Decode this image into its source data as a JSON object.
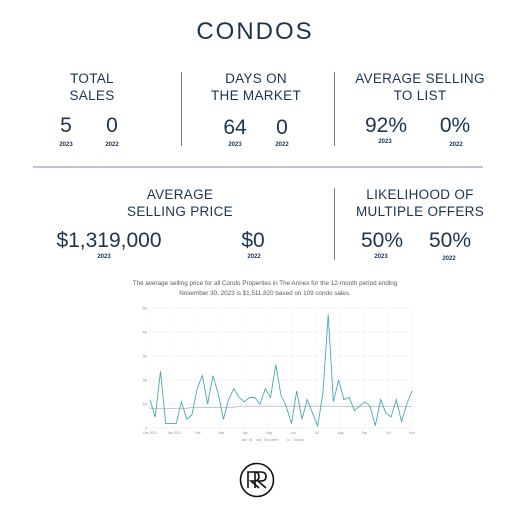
{
  "title": "CONDOS",
  "stats": {
    "total_sales": {
      "label_line1": "TOTAL",
      "label_line2": "SALES",
      "v2023": "5",
      "v2022": "0",
      "y1": "2023",
      "y2": "2022"
    },
    "days_on_market": {
      "label_line1": "DAYS ON",
      "label_line2": "THE MARKET",
      "v2023": "64",
      "v2022": "0",
      "y1": "2023",
      "y2": "2022"
    },
    "avg_to_list": {
      "label_line1": "AVERAGE SELLING",
      "label_line2": "TO LIST",
      "v2023": "92%",
      "v2022": "0%",
      "y1": "2023",
      "y2": "2022"
    },
    "avg_price": {
      "label_line1": "AVERAGE",
      "label_line2": "SELLING PRICE",
      "v2023": "$1,319,000",
      "v2022": "$0",
      "y1": "2023",
      "y2": "2022"
    },
    "multiple_offers": {
      "label_line1": "LIKELIHOOD OF",
      "label_line2": "MULTIPLE OFFERS",
      "v2023": "50%",
      "v2022": "50%",
      "y1": "2023",
      "y2": "2022"
    }
  },
  "caption": {
    "line1": "The average selling price for all Condo Properties in The Annex for the 12-month period ending",
    "line2": "November 30, 2023 is $1,511,820 based on 109 condo sales."
  },
  "chart_data": {
    "type": "line",
    "title": "",
    "xlabel": "",
    "ylabel": "",
    "x_tick_labels": [
      "Dec 2022",
      "Jan 2023",
      "Feb",
      "Mar",
      "Apr",
      "May",
      "Jun",
      "Jul",
      "Aug",
      "Sep",
      "Oct",
      "Nov"
    ],
    "y_tick_labels": [
      "0",
      "1M",
      "2M",
      "3M",
      "4M",
      "5M"
    ],
    "ylim": [
      0,
      5.5
    ],
    "legend": [
      "#1",
      "The Annex",
      "Toronto"
    ],
    "legend_position": "bottom",
    "grid": true,
    "series": [
      {
        "name": "The Annex",
        "color": "#4aa8b5",
        "values": [
          1.3,
          0.5,
          2.6,
          0.2,
          0.2,
          0.2,
          1.2,
          0.4,
          0.6,
          1.8,
          2.4,
          1.1,
          2.4,
          1.6,
          0.4,
          1.3,
          1.8,
          1.4,
          1.2,
          1.4,
          1.4,
          1.1,
          1.8,
          1.4,
          2.9,
          1.5,
          1.0,
          0.2,
          1.7,
          0.4,
          1.3,
          0.7,
          0.1,
          1.6,
          5.2,
          1.2,
          2.2,
          1.3,
          1.4,
          0.8,
          1.0,
          1.2,
          1.0,
          0.1,
          1.3,
          0.7,
          0.5,
          1.3,
          0.3,
          1.1,
          1.7
        ]
      },
      {
        "name": "Toronto",
        "color": "#b3bac3",
        "values": [
          0.9,
          0.9,
          0.9,
          0.9,
          0.9,
          0.9,
          0.9,
          0.9,
          0.95,
          0.95,
          0.95,
          0.95,
          0.95,
          0.95,
          0.95,
          0.95,
          0.95,
          1.0,
          1.0,
          1.0,
          1.0,
          1.0,
          1.0,
          1.0,
          1.0,
          1.0,
          1.0,
          1.0,
          1.0,
          1.0,
          1.0,
          1.0,
          1.0,
          1.0,
          1.0,
          1.0,
          0.98,
          0.98,
          0.98,
          0.98,
          0.98,
          0.98,
          0.98,
          0.98,
          0.98,
          0.98,
          0.98,
          0.98,
          0.98,
          0.98,
          0.98
        ]
      }
    ]
  }
}
